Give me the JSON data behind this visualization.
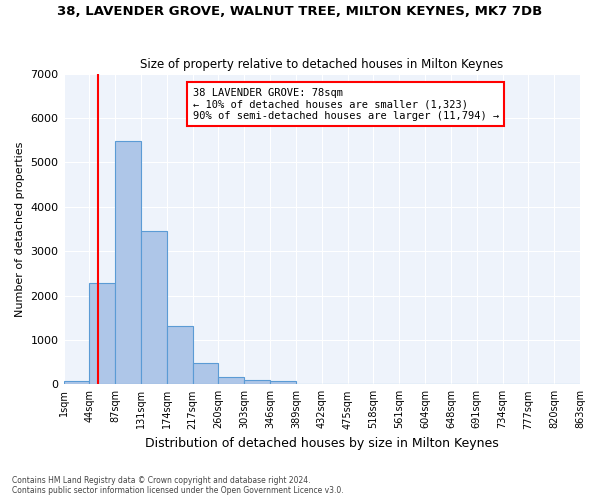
{
  "title": "38, LAVENDER GROVE, WALNUT TREE, MILTON KEYNES, MK7 7DB",
  "subtitle": "Size of property relative to detached houses in Milton Keynes",
  "xlabel": "Distribution of detached houses by size in Milton Keynes",
  "ylabel": "Number of detached properties",
  "bar_values": [
    75,
    2280,
    5480,
    3450,
    1320,
    470,
    165,
    90,
    65,
    0,
    0,
    0,
    0,
    0,
    0,
    0,
    0,
    0,
    0,
    0
  ],
  "bar_color": "#aec6e8",
  "bar_edge_color": "#5b9bd5",
  "tick_labels": [
    "1sqm",
    "44sqm",
    "87sqm",
    "131sqm",
    "174sqm",
    "217sqm",
    "260sqm",
    "303sqm",
    "346sqm",
    "389sqm",
    "432sqm",
    "475sqm",
    "518sqm",
    "561sqm",
    "604sqm",
    "648sqm",
    "691sqm",
    "734sqm",
    "777sqm",
    "820sqm",
    "863sqm"
  ],
  "red_line_x": 1.35,
  "annotation_text": "38 LAVENDER GROVE: 78sqm\n← 10% of detached houses are smaller (1,323)\n90% of semi-detached houses are larger (11,794) →",
  "ylim": [
    0,
    7000
  ],
  "yticks": [
    0,
    1000,
    2000,
    3000,
    4000,
    5000,
    6000,
    7000
  ],
  "background_color": "#eef3fb",
  "grid_color": "#ffffff",
  "footer_line1": "Contains HM Land Registry data © Crown copyright and database right 2024.",
  "footer_line2": "Contains public sector information licensed under the Open Government Licence v3.0."
}
